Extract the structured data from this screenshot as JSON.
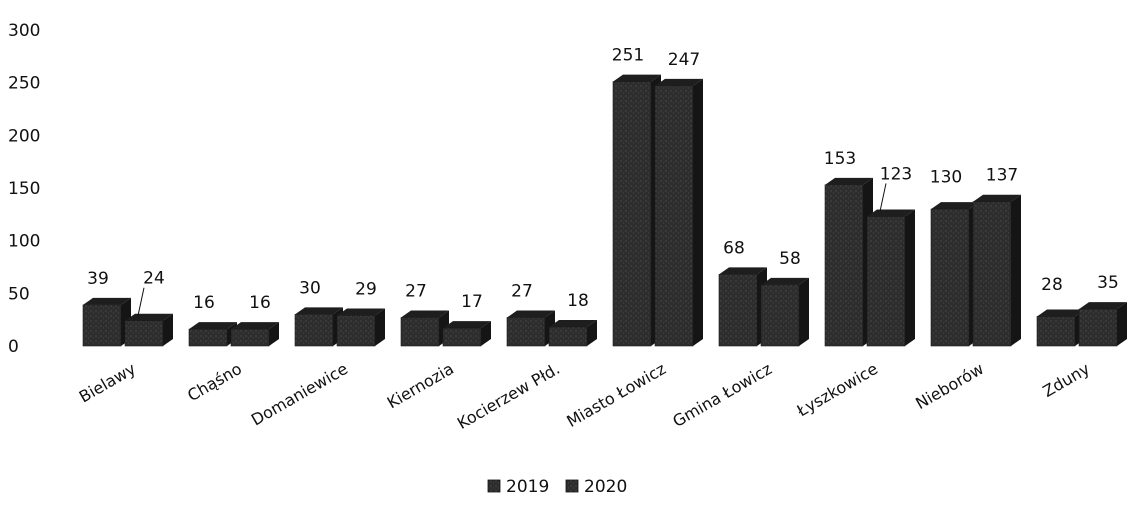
{
  "chart_data": {
    "type": "bar",
    "style": "3d-column",
    "categories": [
      "Bielawy",
      "Chąśno",
      "Domaniewice",
      "Kiernozia",
      "Kocierzew Płd.",
      "Miasto Łowicz",
      "Gmina Łowicz",
      "Łyszkowice",
      "Nieborów",
      "Zduny"
    ],
    "series": [
      {
        "name": "2019",
        "values": [
          39,
          16,
          30,
          27,
          27,
          251,
          68,
          153,
          130,
          28
        ],
        "color": "#2b2b2b"
      },
      {
        "name": "2020",
        "values": [
          24,
          16,
          29,
          17,
          18,
          247,
          58,
          123,
          137,
          35
        ],
        "color": "#333333"
      }
    ],
    "y_ticks": [
      "0",
      "50",
      "100",
      "150",
      "200",
      "250",
      "300"
    ],
    "ylim": [
      0,
      300
    ],
    "title": "",
    "xlabel": "",
    "ylabel": "",
    "grid": false,
    "legend_position": "bottom",
    "data_labels": true
  }
}
